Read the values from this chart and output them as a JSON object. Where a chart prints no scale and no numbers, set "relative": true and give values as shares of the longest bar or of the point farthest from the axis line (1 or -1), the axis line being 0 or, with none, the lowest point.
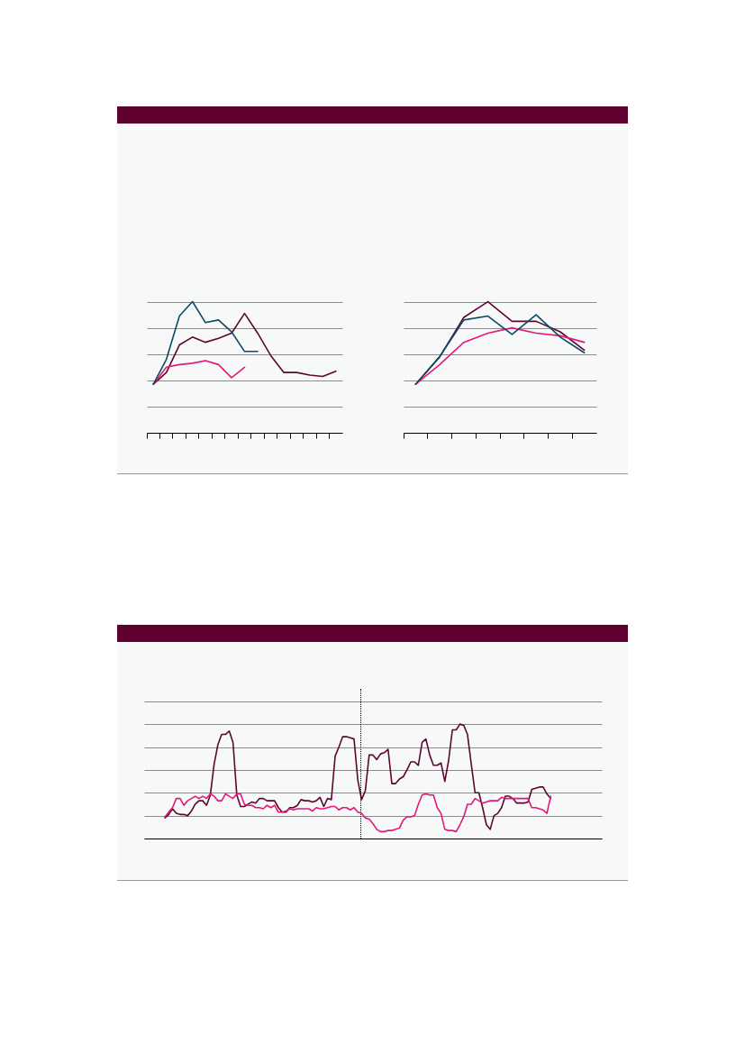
{
  "chart_data": [
    {
      "type": "line",
      "relative": true,
      "grid": "y",
      "categories": [
        null,
        null,
        null,
        null,
        null,
        null,
        null,
        null,
        null,
        null,
        null,
        null,
        null,
        null,
        null
      ],
      "series": [
        {
          "color": "#5c0632",
          "values": [
            0.37,
            0.46,
            0.67,
            0.73,
            0.69,
            0.72,
            0.76,
            0.91,
            0.76,
            0.59,
            0.46,
            0.46,
            0.44,
            0.43,
            0.47
          ]
        },
        {
          "color": "#e5177b",
          "values": [
            0.37,
            0.5,
            0.52,
            0.53,
            0.55,
            0.52,
            0.42,
            0.5,
            null,
            null,
            null,
            null,
            null,
            null,
            null
          ]
        },
        {
          "color": "#0d4a64",
          "values": [
            0.37,
            0.56,
            0.89,
            1,
            0.84,
            0.86,
            0.77,
            0.62,
            0.62,
            null,
            null,
            null,
            null,
            null,
            null
          ]
        }
      ]
    },
    {
      "type": "line",
      "relative": true,
      "grid": "y",
      "categories": [
        null,
        null,
        null,
        null,
        null,
        null,
        null,
        null
      ],
      "series": [
        {
          "color": "#5c0632",
          "values": [
            0.37,
            0.58,
            0.88,
            1,
            0.85,
            0.85,
            0.77,
            0.63
          ]
        },
        {
          "color": "#e5177b",
          "values": [
            0.37,
            0.52,
            0.69,
            0.76,
            0.8,
            0.76,
            0.74,
            0.69
          ]
        },
        {
          "color": "#0d4a64",
          "values": [
            0.37,
            0.58,
            0.86,
            0.89,
            0.75,
            0.9,
            0.73,
            0.61
          ]
        }
      ]
    },
    {
      "type": "line",
      "relative": true,
      "grid": "y",
      "categories": [
        null,
        null,
        null,
        null,
        null,
        null,
        null,
        null,
        null,
        null,
        null,
        null,
        null,
        null,
        null,
        null,
        null,
        null,
        null,
        null,
        null,
        null,
        null,
        null,
        null,
        null,
        null,
        null,
        null,
        null,
        null,
        null,
        null,
        null,
        null,
        null,
        null,
        null,
        null,
        null,
        null,
        null,
        null,
        null,
        null,
        null,
        null,
        null,
        null,
        null,
        null,
        null,
        null,
        null,
        null,
        null,
        null,
        null,
        null,
        null,
        null,
        null,
        null,
        null,
        null,
        null,
        null,
        null,
        null,
        null,
        null,
        null,
        null,
        null,
        null,
        null,
        null,
        null,
        null,
        null,
        null,
        null,
        null,
        null,
        null,
        null,
        null,
        null,
        null,
        null,
        null,
        null,
        null,
        null,
        null,
        null,
        null,
        null,
        null,
        null,
        null,
        null,
        null,
        null,
        null,
        null,
        null,
        null,
        null,
        null,
        null,
        null,
        null,
        null,
        null,
        null,
        null,
        null,
        null,
        null,
        null
      ],
      "series": [
        {
          "color": "#5c0632",
          "values": [
            null,
            null,
            null,
            null,
            null,
            0.18,
            0.21,
            0.26,
            0.22,
            0.21,
            0.21,
            0.2,
            0.24,
            0.3,
            0.33,
            0.33,
            0.29,
            0.38,
            0.65,
            0.82,
            0.91,
            0.91,
            0.94,
            0.84,
            0.38,
            0.28,
            0.28,
            0.3,
            0.32,
            0.31,
            0.35,
            0.35,
            0.33,
            0.33,
            0.33,
            0.27,
            0.23,
            0.23,
            0.27,
            0.27,
            0.29,
            0.34,
            0.33,
            0.33,
            0.32,
            0.33,
            0.36,
            0.28,
            0.35,
            0.34,
            0.72,
            0.8,
            0.89,
            0.89,
            0.88,
            0.87,
            0.51,
            0.34,
            0.42,
            0.73,
            0.73,
            0.69,
            0.74,
            0.75,
            0.78,
            0.48,
            0.48,
            0.52,
            0.54,
            0.6,
            0.67,
            0.67,
            0.64,
            0.84,
            0.87,
            0.73,
            0.64,
            0.64,
            0.66,
            0.5,
            0.68,
            0.95,
            0.95,
            1,
            0.99,
            0.91,
            0.65,
            0.4,
            0.4,
            0.27,
            0.12,
            0.08,
            0.2,
            0.22,
            0.27,
            0.37,
            0.37,
            0.35,
            0.31,
            0.31,
            0.31,
            0.32,
            0.43,
            0.44,
            0.45,
            0.45,
            0.39,
            0.35,
            null,
            null,
            null,
            null,
            null,
            null,
            null,
            null,
            null,
            null,
            null,
            null,
            null
          ]
        },
        {
          "color": "#e5177b",
          "values": [
            null,
            null,
            null,
            null,
            null,
            0.19,
            0.23,
            0.27,
            0.35,
            0.35,
            0.29,
            0.33,
            0.35,
            0.37,
            0.35,
            0.37,
            0.35,
            0.39,
            0.37,
            0.33,
            0.33,
            0.39,
            0.37,
            0.35,
            0.39,
            0.39,
            0.3,
            0.29,
            0.29,
            0.27,
            0.27,
            0.26,
            0.29,
            0.27,
            0.29,
            0.23,
            0.23,
            0.24,
            0.26,
            0.25,
            0.26,
            0.26,
            0.26,
            0.26,
            0.24,
            0.27,
            0.26,
            0.26,
            0.27,
            0.28,
            0.28,
            0.25,
            0.27,
            0.27,
            0.25,
            0.27,
            0.23,
            0.22,
            0.18,
            0.17,
            0.13,
            0.08,
            0.06,
            0.06,
            0.07,
            0.07,
            0.08,
            0.09,
            0.16,
            0.19,
            0.19,
            0.2,
            0.3,
            0.38,
            0.39,
            0.38,
            0.38,
            0.27,
            0.22,
            0.08,
            0.07,
            0.07,
            0.06,
            0.12,
            0.19,
            0.3,
            0.3,
            0.35,
            0.33,
            0.31,
            0.32,
            0.33,
            0.33,
            0.33,
            0.36,
            0.35,
            0.35,
            0.35,
            0.35,
            0.35,
            0.35,
            0.35,
            0.27,
            0.27,
            0.26,
            0.25,
            0.22,
            0.37,
            null,
            null,
            null,
            null,
            null,
            null,
            null,
            null,
            null,
            null,
            null,
            null,
            null
          ]
        }
      ]
    }
  ]
}
